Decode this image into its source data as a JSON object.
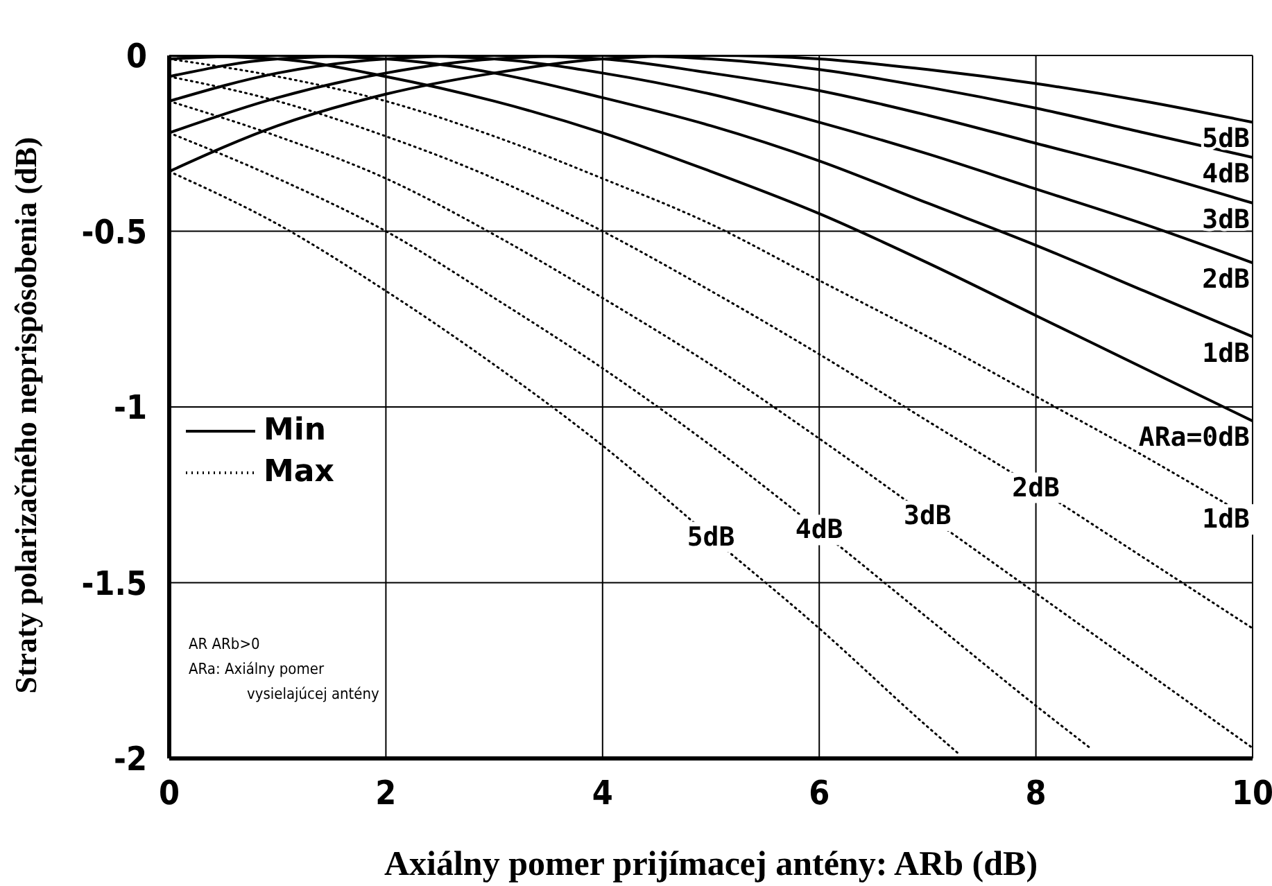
{
  "chart_data": {
    "type": "line",
    "xlabel": "Axiálny pomer prijímacej antény: ARb (dB)",
    "ylabel": "Straty polarizačného neprispôsobenia (dB)",
    "xlim": [
      0,
      10
    ],
    "ylim": [
      -2,
      0
    ],
    "xticks": [
      0,
      2,
      4,
      6,
      8,
      10
    ],
    "yticks": [
      -2,
      -1.5,
      -1,
      -0.5,
      0
    ],
    "grid": true,
    "annotations": [
      "Min",
      "Max",
      "AR ARb>0",
      "ARa: Axiálny pomer",
      "vysielajúcej antény"
    ],
    "x": [
      0,
      1,
      2,
      3,
      4,
      5,
      6,
      7,
      8,
      9,
      10
    ],
    "series": [
      {
        "name": "ARa=0dB",
        "color": "#000000",
        "line_style": "solid",
        "values": [
          0,
          -0.01,
          -0.06,
          -0.13,
          -0.22,
          -0.33,
          -0.45,
          -0.59,
          -0.74,
          -0.89,
          -1.04
        ]
      },
      {
        "name": "1dB",
        "color": "#000000",
        "line_style": "solid",
        "values": [
          -0.01,
          0,
          -0.01,
          -0.05,
          -0.12,
          -0.2,
          -0.3,
          -0.42,
          -0.54,
          -0.67,
          -0.8
        ]
      },
      {
        "name": "2dB",
        "color": "#000000",
        "line_style": "solid",
        "values": [
          -0.06,
          -0.01,
          0,
          -0.01,
          -0.05,
          -0.11,
          -0.19,
          -0.28,
          -0.38,
          -0.48,
          -0.59
        ]
      },
      {
        "name": "3dB",
        "color": "#000000",
        "line_style": "solid",
        "values": [
          -0.13,
          -0.05,
          -0.01,
          0,
          -0.01,
          -0.05,
          -0.1,
          -0.17,
          -0.25,
          -0.33,
          -0.42
        ]
      },
      {
        "name": "4dB",
        "color": "#000000",
        "line_style": "solid",
        "values": [
          -0.22,
          -0.12,
          -0.05,
          -0.01,
          0,
          -0.01,
          -0.04,
          -0.09,
          -0.15,
          -0.22,
          -0.29
        ]
      },
      {
        "name": "5dB",
        "color": "#000000",
        "line_style": "solid",
        "values": [
          -0.33,
          -0.2,
          -0.11,
          -0.05,
          -0.01,
          0,
          -0.01,
          -0.04,
          -0.08,
          -0.13,
          -0.19
        ]
      },
      {
        "name": "1dB",
        "color": "#000000",
        "line_style": "dotted",
        "values": [
          -0.01,
          -0.06,
          -0.13,
          -0.23,
          -0.35,
          -0.48,
          -0.64,
          -0.8,
          -0.97,
          -1.14,
          -1.32
        ]
      },
      {
        "name": "2dB",
        "color": "#000000",
        "line_style": "dotted",
        "values": [
          -0.06,
          -0.13,
          -0.23,
          -0.35,
          -0.5,
          -0.67,
          -0.85,
          -1.04,
          -1.23,
          -1.43,
          -1.63
        ]
      },
      {
        "name": "3dB",
        "color": "#000000",
        "line_style": "dotted",
        "values": [
          -0.13,
          -0.23,
          -0.35,
          -0.51,
          -0.69,
          -0.88,
          -1.09,
          -1.31,
          -1.53,
          -1.75,
          -1.97
        ]
      },
      {
        "name": "4dB",
        "color": "#000000",
        "line_style": "dotted",
        "x": [
          0,
          1,
          2,
          3,
          4,
          5,
          6,
          7,
          8,
          8.5
        ],
        "values": [
          -0.22,
          -0.35,
          -0.5,
          -0.69,
          -0.89,
          -1.11,
          -1.35,
          -1.6,
          -1.85,
          -1.97
        ]
      },
      {
        "name": "5dB",
        "color": "#000000",
        "line_style": "dotted",
        "x": [
          0,
          1,
          2,
          3,
          4,
          5,
          6,
          7,
          7.3
        ],
        "values": [
          -0.33,
          -0.48,
          -0.67,
          -0.88,
          -1.11,
          -1.37,
          -1.63,
          -1.91,
          -1.99
        ]
      }
    ]
  }
}
